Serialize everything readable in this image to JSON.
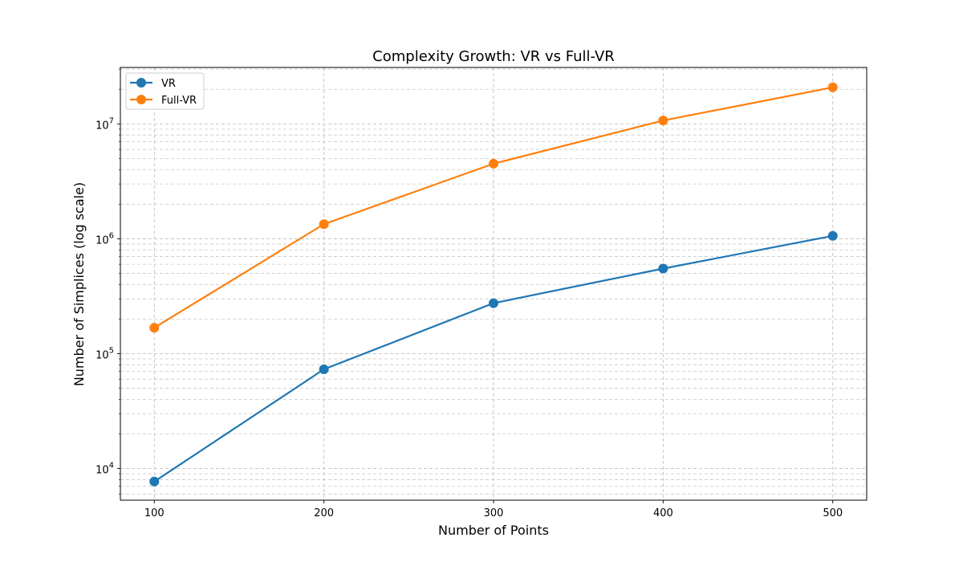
{
  "chart_data": {
    "type": "line",
    "title": "Complexity Growth: VR vs Full-VR",
    "xlabel": "Number of Points",
    "ylabel": "Number of Simplices (log scale)",
    "yscale": "log",
    "x": [
      100,
      200,
      300,
      400,
      500
    ],
    "xlim": [
      80,
      520
    ],
    "ylim": [
      5300,
      31000000
    ],
    "x_tick_labels": [
      "100",
      "200",
      "300",
      "400",
      "500"
    ],
    "y_major_ticks": [
      {
        "value": 10000,
        "base": "10",
        "exp": "4"
      },
      {
        "value": 100000,
        "base": "10",
        "exp": "5"
      },
      {
        "value": 1000000,
        "base": "10",
        "exp": "6"
      },
      {
        "value": 10000000,
        "base": "10",
        "exp": "7"
      }
    ],
    "grid": true,
    "grid_minor": true,
    "legend_position": "top-left",
    "series": [
      {
        "name": "VR",
        "color": "#1f77b4",
        "values": [
          7700,
          73000,
          275000,
          550000,
          1060000
        ]
      },
      {
        "name": "Full-VR",
        "color": "#ff7f0e",
        "values": [
          168000,
          1340000,
          4500000,
          10700000,
          20800000
        ]
      }
    ]
  }
}
